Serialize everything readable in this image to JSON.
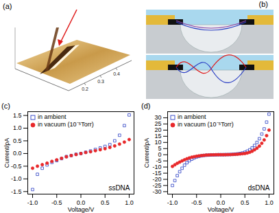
{
  "panels": {
    "a": {
      "label": "(a)",
      "tick_labels": [
        "0.2",
        "0.3",
        "0.4"
      ]
    },
    "b": {
      "label": "(b)"
    }
  },
  "chart_data": [
    {
      "type": "scatter",
      "panel_label": "(c)",
      "x_label": "Voltage/V",
      "y_label": "Current/pA",
      "annotations": [
        "ssDNA"
      ],
      "legend": "upper left",
      "xlim": [
        -1.1,
        1.1
      ],
      "xticks": [
        {
          "value": -1,
          "label": "-1.0"
        },
        -0.5,
        {
          "value": 0,
          "label": "0.0"
        },
        0.5,
        {
          "value": 1,
          "label": "1.0"
        }
      ],
      "ylim": [
        -1.6,
        1.65
      ],
      "yticks": [
        -1.5,
        {
          "value": -1,
          "label": "-1.0"
        },
        -0.5,
        {
          "value": 0,
          "label": "0.0"
        },
        0.5,
        {
          "value": 1,
          "label": "1.0"
        },
        1.5
      ],
      "x": [
        -1.0,
        -0.9,
        -0.8,
        -0.7,
        -0.6,
        -0.5,
        -0.4,
        -0.3,
        -0.2,
        -0.1,
        0.0,
        0.1,
        0.2,
        0.3,
        0.4,
        0.5,
        0.6,
        0.7,
        0.8,
        0.9,
        1.0
      ],
      "series": [
        {
          "name": "in ambient",
          "color": "#2b3fc4",
          "marker": "square_open",
          "values": [
            -1.42,
            -0.82,
            -0.58,
            -0.45,
            -0.35,
            -0.28,
            -0.2,
            -0.12,
            -0.08,
            -0.03,
            0,
            0.05,
            0.1,
            0.16,
            0.22,
            0.28,
            0.35,
            0.5,
            0.72,
            1.1,
            1.52
          ]
        },
        {
          "name": "in vacuum (10⁻⁵Torr)",
          "color": "#e8282a",
          "marker": "circle",
          "values": [
            -0.58,
            -0.5,
            -0.44,
            -0.38,
            -0.31,
            -0.25,
            -0.19,
            -0.13,
            -0.08,
            -0.04,
            0,
            0.04,
            0.07,
            0.11,
            0.15,
            0.19,
            0.24,
            0.3,
            0.37,
            0.45,
            0.55
          ]
        }
      ]
    },
    {
      "type": "scatter",
      "panel_label": "(d)",
      "x_label": "Voltage/V",
      "y_label": "Current/pA",
      "annotations": [
        "dsDNA"
      ],
      "legend": "upper left",
      "xlim": [
        -1.1,
        1.1
      ],
      "xticks": [
        {
          "value": -1,
          "label": "-1.0"
        },
        -0.5,
        {
          "value": 0,
          "label": "0.0"
        },
        0.5,
        {
          "value": 1,
          "label": "1.0"
        }
      ],
      "ylim": [
        -32,
        35
      ],
      "yticks": [
        -30,
        -25,
        -20,
        -15,
        -10,
        -5,
        0,
        5,
        10,
        15,
        20,
        25,
        30
      ],
      "x": [
        -1.0,
        -0.95,
        -0.9,
        -0.85,
        -0.8,
        -0.75,
        -0.7,
        -0.65,
        -0.6,
        -0.55,
        -0.5,
        -0.45,
        -0.4,
        -0.35,
        -0.3,
        -0.25,
        -0.2,
        -0.15,
        -0.1,
        -0.05,
        0.0,
        0.05,
        0.1,
        0.15,
        0.2,
        0.25,
        0.3,
        0.35,
        0.4,
        0.45,
        0.5,
        0.55,
        0.6,
        0.65,
        0.7,
        0.75,
        0.8,
        0.85,
        0.9,
        0.95,
        1.0
      ],
      "series": [
        {
          "name": "in ambient",
          "color": "#2b3fc4",
          "marker": "square_open",
          "values": [
            -25,
            -21,
            -17,
            -13.8,
            -11,
            -8.5,
            -6.5,
            -4.9,
            -3.6,
            -2.6,
            -1.8,
            -1.3,
            -0.9,
            -0.6,
            -0.4,
            -0.3,
            -0.2,
            -0.1,
            -0.1,
            0,
            0,
            0,
            0.1,
            0.1,
            0.2,
            0.3,
            0.5,
            0.7,
            1,
            1.4,
            2,
            2.9,
            4,
            5.5,
            7.5,
            10,
            13,
            16.8,
            21,
            26.5,
            33
          ]
        },
        {
          "name": "in vacuum (10⁻⁵Torr)",
          "color": "#e8282a",
          "marker": "circle",
          "values": [
            -9.5,
            -8.2,
            -7,
            -6,
            -5,
            -4.1,
            -3.3,
            -2.6,
            -2,
            -1.6,
            -1.2,
            -0.9,
            -0.7,
            -0.5,
            -0.3,
            -0.2,
            -0.1,
            -0.1,
            0,
            0,
            0,
            0,
            0,
            0.1,
            0.1,
            0.2,
            0.3,
            0.4,
            0.6,
            0.8,
            1,
            1.4,
            2,
            2.8,
            4,
            5.3,
            7,
            9.3,
            12,
            15.5,
            20
          ]
        }
      ]
    }
  ]
}
